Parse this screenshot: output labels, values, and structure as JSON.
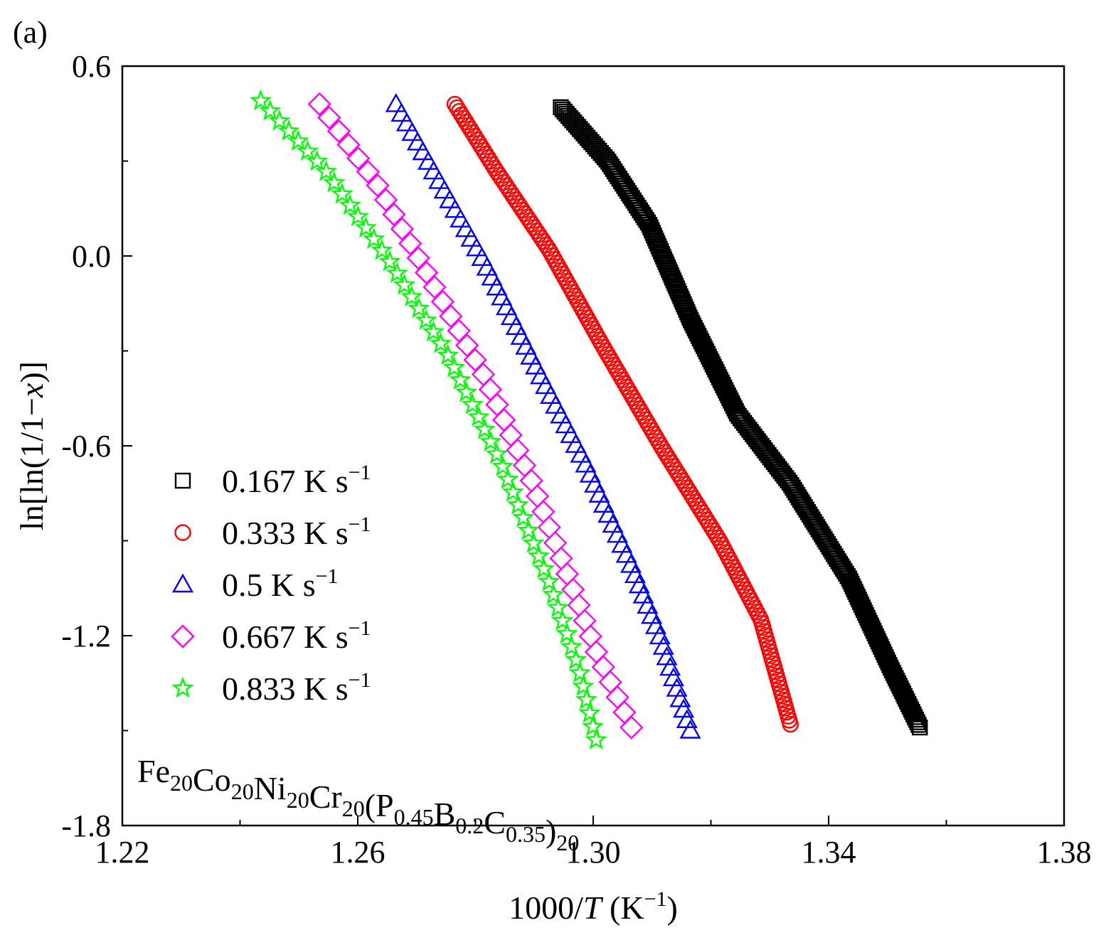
{
  "panel_label": "(a)",
  "composition": {
    "parts": [
      {
        "t": "Fe",
        "s": "20"
      },
      {
        "t": "Co",
        "s": "20"
      },
      {
        "t": "Ni",
        "s": "20"
      },
      {
        "t": "Cr",
        "s": "20"
      },
      {
        "t": "(P",
        "s": "0.45"
      },
      {
        "t": "B",
        "s": "0.2"
      },
      {
        "t": "C",
        "s": "0.35"
      },
      {
        "t": ")",
        "s": "20"
      }
    ]
  },
  "chart_data": {
    "type": "scatter",
    "title": "",
    "xlabel": {
      "prefix": "1000/",
      "var": "T",
      "unit_open": " (K",
      "unit_sup": "−1",
      "unit_close": ")"
    },
    "ylabel": {
      "prefix": "ln[ln(1/1−",
      "var": "x",
      "suffix": ")]"
    },
    "xlim": [
      1.22,
      1.38
    ],
    "ylim": [
      -1.8,
      0.6
    ],
    "xticks": [
      1.22,
      1.26,
      1.3,
      1.34,
      1.38
    ],
    "xtick_labels": [
      "1.22",
      "1.26",
      "1.30",
      "1.34",
      "1.38"
    ],
    "yticks": [
      0.6,
      0.0,
      -0.6,
      -1.2,
      -1.8
    ],
    "ytick_labels": [
      "0.6",
      "0.0",
      "-0.6",
      "-1.2",
      "-1.8"
    ],
    "legend_position": "center-left",
    "series": [
      {
        "name": "0.167 K s",
        "sup": "−1",
        "marker": "square",
        "color": "#000000",
        "count": 250,
        "points": [
          [
            1.2945,
            0.47
          ],
          [
            1.3025,
            0.3
          ],
          [
            1.3095,
            0.1
          ],
          [
            1.3165,
            -0.2
          ],
          [
            1.3245,
            -0.5
          ],
          [
            1.3335,
            -0.72
          ],
          [
            1.3435,
            -1.02
          ],
          [
            1.3505,
            -1.3
          ],
          [
            1.3555,
            -1.49
          ]
        ]
      },
      {
        "name": "0.333 K s",
        "sup": "−1",
        "marker": "circle",
        "color": "#ff0000",
        "count": 170,
        "points": [
          [
            1.2765,
            0.48
          ],
          [
            1.2835,
            0.27
          ],
          [
            1.2925,
            0.02
          ],
          [
            1.3015,
            -0.28
          ],
          [
            1.3115,
            -0.6
          ],
          [
            1.3215,
            -0.9
          ],
          [
            1.3285,
            -1.15
          ],
          [
            1.3335,
            -1.48
          ]
        ]
      },
      {
        "name": "0.5 K s",
        "sup": "−1",
        "marker": "triangle",
        "color": "#0000ff",
        "count": 64,
        "points": [
          [
            1.2665,
            0.48
          ],
          [
            1.2725,
            0.28
          ],
          [
            1.2815,
            -0.02
          ],
          [
            1.2905,
            -0.36
          ],
          [
            1.2985,
            -0.65
          ],
          [
            1.3065,
            -0.98
          ],
          [
            1.3115,
            -1.21
          ],
          [
            1.3165,
            -1.5
          ]
        ]
      },
      {
        "name": "0.667 K s",
        "sup": "−1",
        "marker": "diamond",
        "color": "#ff00ff",
        "count": 43,
        "points": [
          [
            1.2535,
            0.48
          ],
          [
            1.2635,
            0.22
          ],
          [
            1.2725,
            -0.08
          ],
          [
            1.2815,
            -0.38
          ],
          [
            1.2895,
            -0.71
          ],
          [
            1.2965,
            -1.05
          ],
          [
            1.3005,
            -1.25
          ],
          [
            1.3065,
            -1.49
          ]
        ]
      },
      {
        "name": "0.833 K s",
        "sup": "−1",
        "marker": "star",
        "color": "#00ff00",
        "count": 54,
        "points": [
          [
            1.2435,
            0.49
          ],
          [
            1.2545,
            0.27
          ],
          [
            1.2655,
            -0.02
          ],
          [
            1.2755,
            -0.32
          ],
          [
            1.2845,
            -0.66
          ],
          [
            1.2925,
            -1.03
          ],
          [
            1.2975,
            -1.3
          ],
          [
            1.3005,
            -1.53
          ]
        ]
      }
    ]
  }
}
